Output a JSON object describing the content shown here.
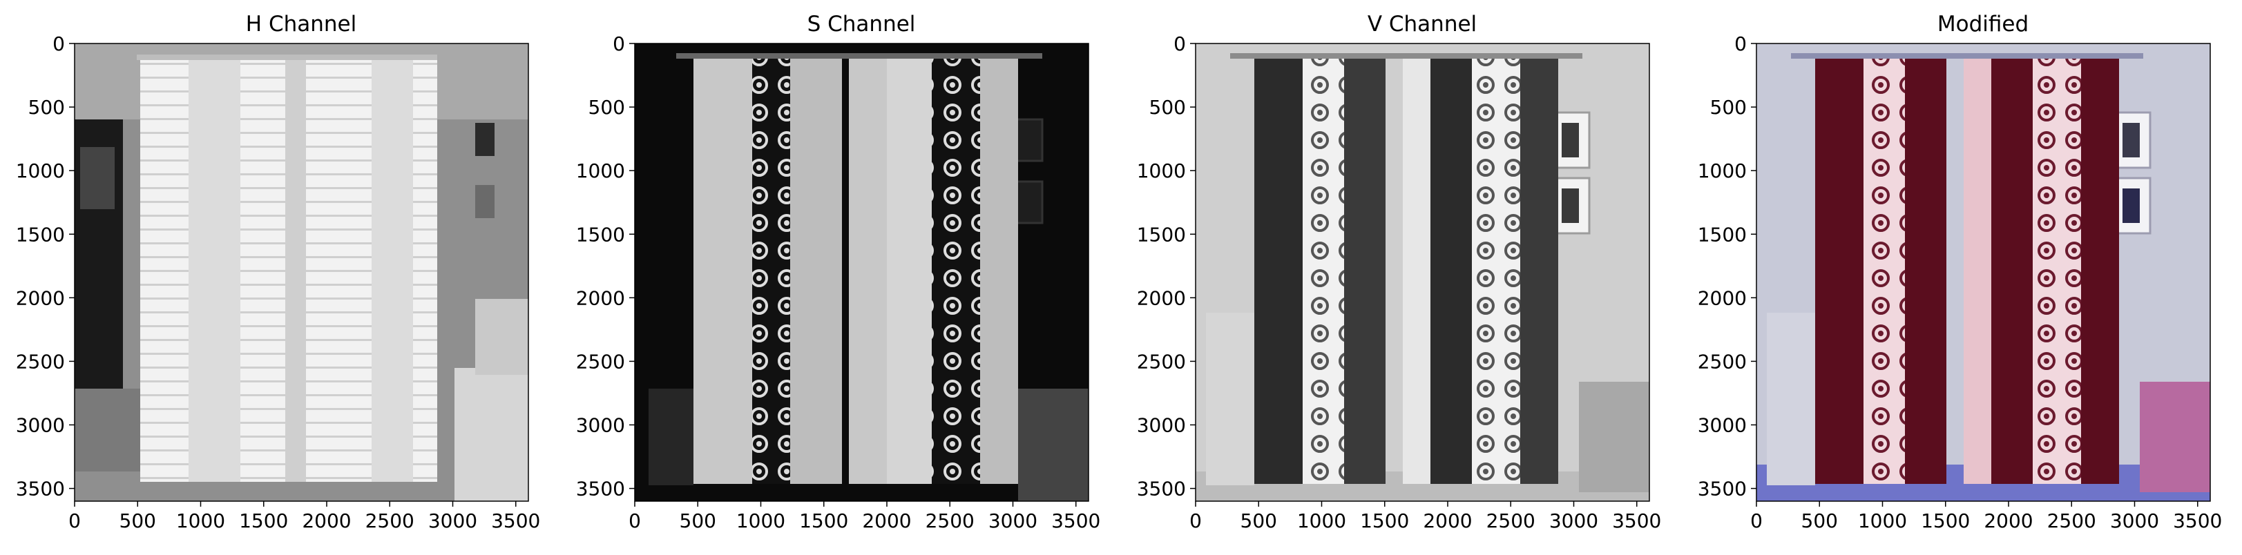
{
  "figure": {
    "panels": [
      {
        "title": "H Channel",
        "kind": "hue-gray"
      },
      {
        "title": "S Channel",
        "kind": "sat-gray"
      },
      {
        "title": "V Channel",
        "kind": "val-gray"
      },
      {
        "title": "Modified",
        "kind": "color"
      }
    ],
    "x_ticks": [
      "0",
      "500",
      "1000",
      "1500",
      "2000",
      "2500",
      "3000",
      "3500"
    ],
    "y_ticks": [
      "0",
      "500",
      "1000",
      "1500",
      "2000",
      "2500",
      "3000",
      "3500"
    ],
    "x_tick_values": [
      0,
      500,
      1000,
      1500,
      2000,
      2500,
      3000,
      3500
    ],
    "y_tick_values": [
      0,
      500,
      1000,
      1500,
      2000,
      2500,
      3000,
      3500
    ],
    "image_extent": [
      3600,
      3600
    ]
  },
  "colors": {
    "curtain_dark": "#5a0d1e",
    "curtain_light": "#e8c3cc",
    "chair": "#b76aa0",
    "floor": "#6f74c9",
    "wall": "#c7c9d8"
  }
}
